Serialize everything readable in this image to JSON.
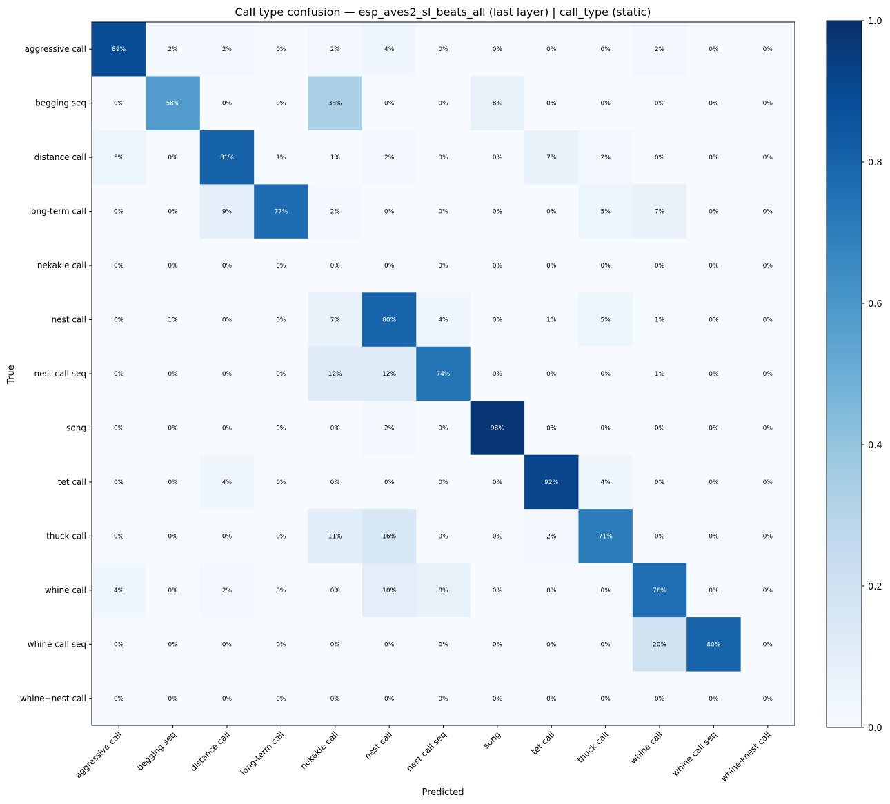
{
  "chart_data": {
    "type": "heatmap",
    "title": "Call type confusion — esp_aves2_sl_beats_all (last layer) | call_type (static)",
    "xlabel": "Predicted",
    "ylabel": "True",
    "x_categories": [
      "aggressive call",
      "begging seq",
      "distance call",
      "long-term call",
      "nekakle call",
      "nest call",
      "nest call seq",
      "song",
      "tet call",
      "thuck call",
      "whine call",
      "whine call seq",
      "whine+nest call"
    ],
    "y_categories": [
      "aggressive call",
      "begging seq",
      "distance call",
      "long-term call",
      "nekakle call",
      "nest call",
      "nest call seq",
      "song",
      "tet call",
      "thuck call",
      "whine call",
      "whine call seq",
      "whine+nest call"
    ],
    "values": [
      [
        0.89,
        0.02,
        0.02,
        0.0,
        0.02,
        0.04,
        0.0,
        0.0,
        0.0,
        0.0,
        0.02,
        0.0,
        0.0
      ],
      [
        0.0,
        0.58,
        0.0,
        0.0,
        0.33,
        0.0,
        0.0,
        0.08,
        0.0,
        0.0,
        0.0,
        0.0,
        0.0
      ],
      [
        0.05,
        0.0,
        0.81,
        0.01,
        0.01,
        0.02,
        0.0,
        0.0,
        0.07,
        0.02,
        0.0,
        0.0,
        0.0
      ],
      [
        0.0,
        0.0,
        0.09,
        0.77,
        0.02,
        0.0,
        0.0,
        0.0,
        0.0,
        0.05,
        0.07,
        0.0,
        0.0
      ],
      [
        0.0,
        0.0,
        0.0,
        0.0,
        0.0,
        0.0,
        0.0,
        0.0,
        0.0,
        0.0,
        0.0,
        0.0,
        0.0
      ],
      [
        0.0,
        0.01,
        0.0,
        0.0,
        0.07,
        0.8,
        0.04,
        0.0,
        0.01,
        0.05,
        0.01,
        0.0,
        0.0
      ],
      [
        0.0,
        0.0,
        0.0,
        0.0,
        0.12,
        0.12,
        0.74,
        0.0,
        0.0,
        0.0,
        0.01,
        0.0,
        0.0
      ],
      [
        0.0,
        0.0,
        0.0,
        0.0,
        0.0,
        0.02,
        0.0,
        0.98,
        0.0,
        0.0,
        0.0,
        0.0,
        0.0
      ],
      [
        0.0,
        0.0,
        0.04,
        0.0,
        0.0,
        0.0,
        0.0,
        0.0,
        0.92,
        0.04,
        0.0,
        0.0,
        0.0
      ],
      [
        0.0,
        0.0,
        0.0,
        0.0,
        0.11,
        0.16,
        0.0,
        0.0,
        0.02,
        0.71,
        0.0,
        0.0,
        0.0
      ],
      [
        0.04,
        0.0,
        0.02,
        0.0,
        0.0,
        0.1,
        0.08,
        0.0,
        0.0,
        0.0,
        0.76,
        0.0,
        0.0
      ],
      [
        0.0,
        0.0,
        0.0,
        0.0,
        0.0,
        0.0,
        0.0,
        0.0,
        0.0,
        0.0,
        0.2,
        0.8,
        0.0
      ],
      [
        0.0,
        0.0,
        0.0,
        0.0,
        0.0,
        0.0,
        0.0,
        0.0,
        0.0,
        0.0,
        0.0,
        0.0,
        0.0
      ]
    ],
    "cell_labels": [
      [
        "89%",
        "2%",
        "2%",
        "0%",
        "2%",
        "4%",
        "0%",
        "0%",
        "0%",
        "0%",
        "2%",
        "0%",
        "0%"
      ],
      [
        "0%",
        "58%",
        "0%",
        "0%",
        "33%",
        "0%",
        "0%",
        "8%",
        "0%",
        "0%",
        "0%",
        "0%",
        "0%"
      ],
      [
        "5%",
        "0%",
        "81%",
        "1%",
        "1%",
        "2%",
        "0%",
        "0%",
        "7%",
        "2%",
        "0%",
        "0%",
        "0%"
      ],
      [
        "0%",
        "0%",
        "9%",
        "77%",
        "2%",
        "0%",
        "0%",
        "0%",
        "0%",
        "5%",
        "7%",
        "0%",
        "0%"
      ],
      [
        "0%",
        "0%",
        "0%",
        "0%",
        "0%",
        "0%",
        "0%",
        "0%",
        "0%",
        "0%",
        "0%",
        "0%",
        "0%"
      ],
      [
        "0%",
        "1%",
        "0%",
        "0%",
        "7%",
        "80%",
        "4%",
        "0%",
        "1%",
        "5%",
        "1%",
        "0%",
        "0%"
      ],
      [
        "0%",
        "0%",
        "0%",
        "0%",
        "12%",
        "12%",
        "74%",
        "0%",
        "0%",
        "0%",
        "1%",
        "0%",
        "0%"
      ],
      [
        "0%",
        "0%",
        "0%",
        "0%",
        "0%",
        "2%",
        "0%",
        "98%",
        "0%",
        "0%",
        "0%",
        "0%",
        "0%"
      ],
      [
        "0%",
        "0%",
        "4%",
        "0%",
        "0%",
        "0%",
        "0%",
        "0%",
        "92%",
        "4%",
        "0%",
        "0%",
        "0%"
      ],
      [
        "0%",
        "0%",
        "0%",
        "0%",
        "11%",
        "16%",
        "0%",
        "0%",
        "2%",
        "71%",
        "0%",
        "0%",
        "0%"
      ],
      [
        "4%",
        "0%",
        "2%",
        "0%",
        "0%",
        "10%",
        "8%",
        "0%",
        "0%",
        "0%",
        "76%",
        "0%",
        "0%"
      ],
      [
        "0%",
        "0%",
        "0%",
        "0%",
        "0%",
        "0%",
        "0%",
        "0%",
        "0%",
        "0%",
        "20%",
        "80%",
        "0%"
      ],
      [
        "0%",
        "0%",
        "0%",
        "0%",
        "0%",
        "0%",
        "0%",
        "0%",
        "0%",
        "0%",
        "0%",
        "0%",
        "0%"
      ]
    ],
    "colormap": "Blues",
    "colorbar": {
      "range": [
        0.0,
        1.0
      ],
      "ticks": [
        "0.0",
        "0.2",
        "0.4",
        "0.6",
        "0.8",
        "1.0"
      ],
      "placement": "right"
    },
    "grid": false
  },
  "colors": {
    "cmap_stops": [
      "#f7fbff",
      "#deebf7",
      "#c6dbef",
      "#9ecae1",
      "#6baed6",
      "#4292c6",
      "#2171b5",
      "#08519c",
      "#08306b"
    ],
    "text_dark": "#000000",
    "text_light": "#ffffff"
  }
}
